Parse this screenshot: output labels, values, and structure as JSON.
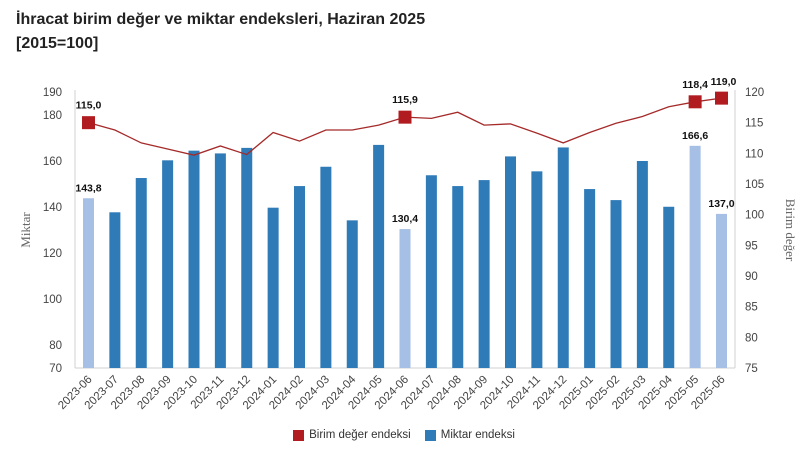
{
  "chart_data": {
    "type": "bar+line",
    "title": "İhracat birim değer ve miktar endeksleri, Haziran 2025",
    "subtitle": "[2015=100]",
    "ylabel_left": "Miktar",
    "ylabel_right": "Birim değer",
    "ylim_left": [
      70,
      190
    ],
    "yticks_left": [
      70,
      80,
      100,
      120,
      140,
      160,
      180,
      190
    ],
    "ylim_right": [
      75,
      120
    ],
    "yticks_right": [
      75,
      80,
      85,
      90,
      95,
      100,
      105,
      110,
      115,
      120
    ],
    "grid": false,
    "legend_position": "bottom",
    "categories": [
      "2023-06",
      "2023-07",
      "2023-08",
      "2023-09",
      "2023-10",
      "2023-11",
      "2023-12",
      "2024-01",
      "2024-02",
      "2024-03",
      "2024-04",
      "2024-05",
      "2024-06",
      "2024-07",
      "2024-08",
      "2024-09",
      "2024-10",
      "2024-11",
      "2024-12",
      "2025-01",
      "2025-02",
      "2025-03",
      "2025-04",
      "2025-05",
      "2025-06"
    ],
    "series": [
      {
        "name": "Birim değer endeksi",
        "type": "line",
        "axis": "right",
        "color": "#a52a2a",
        "marker_color": "#b01c20",
        "values": [
          115.0,
          113.8,
          111.7,
          110.7,
          109.7,
          111.2,
          109.8,
          113.4,
          112.0,
          113.8,
          113.8,
          114.6,
          115.9,
          115.7,
          116.7,
          114.6,
          114.8,
          113.3,
          111.7,
          113.4,
          114.9,
          116.0,
          117.6,
          118.4,
          119.0
        ],
        "labels": {
          "0": "115,0",
          "12": "115,9",
          "23": "118,4",
          "24": "119,0"
        }
      },
      {
        "name": "Miktar endeksi",
        "type": "bar",
        "axis": "left",
        "color": "#2f7bb8",
        "highlight_color": "#a6bfe4",
        "values": [
          143.8,
          137.7,
          152.6,
          160.3,
          164.5,
          163.3,
          165.7,
          139.7,
          149.1,
          157.5,
          134.2,
          167.0,
          130.4,
          153.8,
          149.1,
          151.7,
          162.0,
          155.5,
          165.9,
          147.8,
          143.0,
          160.0,
          140.1,
          166.6,
          137.0
        ],
        "highlighted": [
          0,
          12,
          23,
          24
        ],
        "labels": {
          "0": "143,8",
          "12": "130,4",
          "23": "166,6",
          "24": "137,0"
        }
      }
    ]
  }
}
